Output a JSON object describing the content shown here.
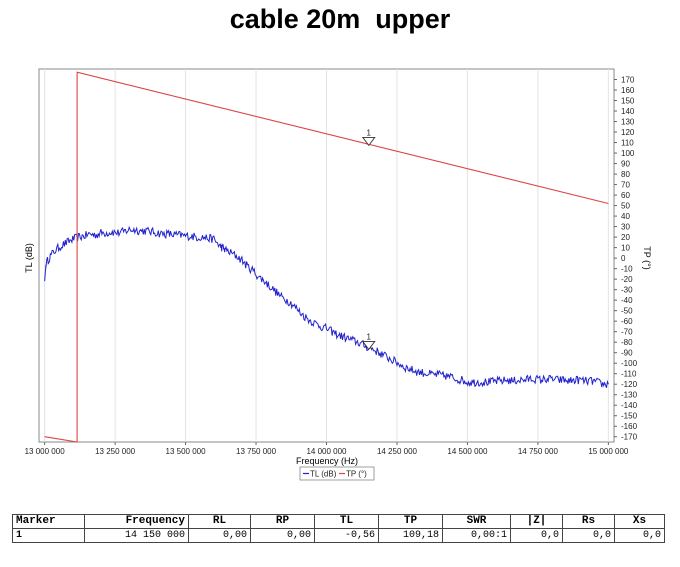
{
  "chart_data": {
    "type": "line",
    "title": "cable 20m  upper",
    "xlabel": "Frequency (Hz)",
    "ylabel_left": "TL (dB)",
    "ylabel_right": "TP (°)",
    "xlim": [
      12980000,
      15020000
    ],
    "x_ticks": [
      13000000,
      13250000,
      13500000,
      13750000,
      14000000,
      14250000,
      14500000,
      14750000,
      15000000
    ],
    "x_tick_labels": [
      "13 000 000",
      "13 250 000",
      "13 500 000",
      "13 750 000",
      "14 000 000",
      "14 250 000",
      "14 500 000",
      "14 750 000",
      "15 000 000"
    ],
    "y_right_lim": [
      -175,
      180
    ],
    "y_right_ticks": [
      170,
      160,
      150,
      140,
      130,
      120,
      110,
      100,
      90,
      80,
      70,
      60,
      50,
      40,
      30,
      20,
      10,
      0,
      -10,
      -20,
      -30,
      -40,
      -50,
      -60,
      -70,
      -80,
      -90,
      -100,
      -110,
      -120,
      -130,
      -140,
      -150,
      -160,
      -170
    ],
    "grid": "vertical",
    "legend_position": "bottom-center",
    "series": [
      {
        "name": "TL (dB)",
        "color": "#2222cc",
        "x": [
          13000000,
          13005000,
          13020000,
          13040000,
          13060000,
          13080000,
          13100000,
          13120000,
          13140000,
          13160000,
          13180000,
          13200000,
          13220000,
          13240000,
          13260000,
          13280000,
          13300000,
          13320000,
          13340000,
          13360000,
          13380000,
          13400000,
          13420000,
          13440000,
          13460000,
          13480000,
          13500000,
          13520000,
          13540000,
          13560000,
          13580000,
          13600000,
          13620000,
          13630000,
          13640000,
          13660000,
          13680000,
          13700000,
          13720000,
          13740000,
          13760000,
          13780000,
          13800000,
          13820000,
          13840000,
          13860000,
          13880000,
          13900000,
          13920000,
          13940000,
          13960000,
          13980000,
          14000000,
          14020000,
          14040000,
          14060000,
          14080000,
          14100000,
          14120000,
          14140000,
          14160000,
          14180000,
          14200000,
          14220000,
          14240000,
          14260000,
          14280000,
          14300000,
          14320000,
          14340000,
          14360000,
          14380000,
          14400000,
          14420000,
          14440000,
          14460000,
          14480000,
          14500000,
          14520000,
          14540000,
          14560000,
          14580000,
          14600000,
          14620000,
          14640000,
          14660000,
          14680000,
          14700000,
          14720000,
          14740000,
          14760000,
          14780000,
          14800000,
          14820000,
          14840000,
          14860000,
          14880000,
          14900000,
          14920000,
          14940000,
          14960000,
          14980000,
          15000000
        ],
        "y": [
          -22,
          -5,
          2,
          8,
          12,
          15,
          18,
          20,
          21,
          23,
          22,
          24,
          24,
          25,
          24,
          25,
          27,
          27,
          26,
          26,
          25,
          24,
          23,
          23,
          22,
          22,
          21,
          21,
          20,
          20,
          19,
          18,
          12,
          10,
          8,
          5,
          2,
          -2,
          -8,
          -12,
          -18,
          -22,
          -27,
          -32,
          -37,
          -40,
          -44,
          -50,
          -55,
          -59,
          -62,
          -65,
          -67,
          -70,
          -73,
          -75,
          -77,
          -79,
          -81,
          -84,
          -86,
          -89,
          -92,
          -95,
          -98,
          -101,
          -104,
          -106,
          -108,
          -109,
          -110,
          -111,
          -111,
          -112,
          -113,
          -115,
          -116,
          -118,
          -118,
          -118,
          -118,
          -118,
          -117,
          -117,
          -116,
          -117,
          -116,
          -116,
          -115,
          -115,
          -116,
          -115,
          -115,
          -116,
          -116,
          -117,
          -116,
          -116,
          -117,
          -117,
          -118,
          -120,
          -120
        ]
      },
      {
        "name": "TP (°)",
        "color": "#dd4444",
        "x": [
          13000000,
          13115000,
          13115000,
          15000000
        ],
        "y": [
          -170,
          -175,
          177,
          52
        ]
      }
    ],
    "markers": [
      {
        "label": "1",
        "series": "TL (dB)",
        "x": 14150000,
        "y": -85
      },
      {
        "label": "1",
        "series": "TP (°)",
        "x": 14150000,
        "y": 109.18
      }
    ]
  },
  "legend": {
    "items": [
      {
        "label": "TL (dB)",
        "color": "#2222cc"
      },
      {
        "label": "TP (°)",
        "color": "#dd4444"
      }
    ]
  },
  "marker_table": {
    "headers": [
      "Marker",
      "Frequency",
      "RL",
      "RP",
      "TL",
      "TP",
      "SWR",
      "|Z|",
      "Rs",
      "Xs"
    ],
    "rows": [
      [
        "1",
        "14 150 000",
        "0,00",
        "0,00",
        "-0,56",
        "109,18",
        "0,00:1",
        "0,0",
        "0,0",
        "0,0"
      ]
    ]
  }
}
